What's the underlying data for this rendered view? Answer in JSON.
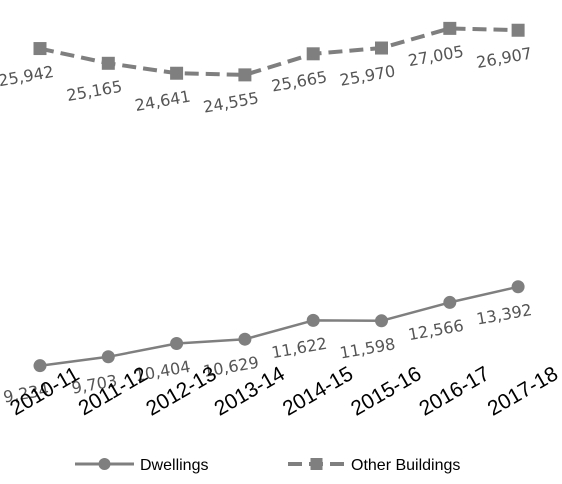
{
  "chart_data": {
    "type": "line",
    "categories": [
      "2010-11",
      "2011-12",
      "2012-13",
      "2013-14",
      "2014-15",
      "2015-16",
      "2016-17",
      "2017-18"
    ],
    "series": [
      {
        "name": "Dwellings",
        "values": [
          9234,
          9703,
          10404,
          10629,
          11622,
          11598,
          12566,
          13392
        ],
        "labels": [
          "9,234",
          "9,703",
          "10,404",
          "10,629",
          "11,622",
          "11,598",
          "12,566",
          "13,392"
        ],
        "marker": "circle",
        "line_style": "solid",
        "color": "#7f7f7f"
      },
      {
        "name": "Other Buildings",
        "values": [
          25942,
          25165,
          24641,
          24555,
          25665,
          25970,
          27005,
          26907
        ],
        "labels": [
          "25,942",
          "25,165",
          "24,641",
          "24,555",
          "25,665",
          "25,970",
          "27,005",
          "26,907"
        ],
        "marker": "square",
        "line_style": "dashed",
        "color": "#7f7f7f"
      }
    ],
    "title": "",
    "xlabel": "",
    "ylabel": "",
    "ylim": [
      3000,
      28500
    ],
    "grid": false,
    "y_axis_visible": false,
    "legend": "bottom"
  }
}
